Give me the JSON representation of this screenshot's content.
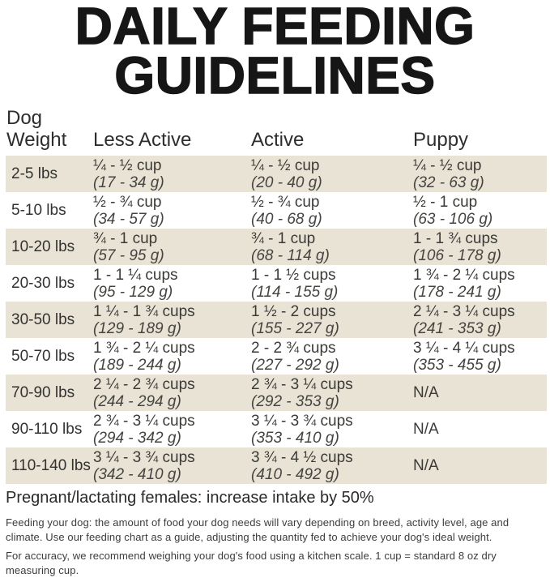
{
  "title": "DAILY FEEDING\nGUIDELINES",
  "colors": {
    "row_stripe": "#e8e3d4"
  },
  "table": {
    "headers": [
      "Dog\nWeight",
      "Less Active",
      "Active",
      "Puppy"
    ],
    "rows": [
      {
        "weight": "2-5 lbs",
        "less_active": {
          "cups": "¼ - ½ cup",
          "grams": "(17 - 34 g)"
        },
        "active": {
          "cups": "¼ - ½ cup",
          "grams": "(20 - 40 g)"
        },
        "puppy": {
          "cups": "¼ - ½ cup",
          "grams": "(32 - 63 g)"
        }
      },
      {
        "weight": "5-10 lbs",
        "less_active": {
          "cups": "½ - ¾ cup",
          "grams": "(34 - 57 g)"
        },
        "active": {
          "cups": "½ - ¾ cup",
          "grams": "(40 - 68 g)"
        },
        "puppy": {
          "cups": "½ - 1 cup",
          "grams": "(63 - 106 g)"
        }
      },
      {
        "weight": "10-20 lbs",
        "less_active": {
          "cups": "¾ - 1 cup",
          "grams": "(57 - 95 g)"
        },
        "active": {
          "cups": "¾ - 1 cup",
          "grams": "(68 - 114 g)"
        },
        "puppy": {
          "cups": "1 - 1 ¾ cups",
          "grams": "(106 - 178 g)"
        }
      },
      {
        "weight": "20-30 lbs",
        "less_active": {
          "cups": "1 - 1 ¼ cups",
          "grams": "(95 - 129 g)"
        },
        "active": {
          "cups": "1 - 1 ½ cups",
          "grams": "(114 - 155 g)"
        },
        "puppy": {
          "cups": "1 ¾ - 2 ¼ cups",
          "grams": "(178 - 241 g)"
        }
      },
      {
        "weight": "30-50 lbs",
        "less_active": {
          "cups": "1 ¼ - 1 ¾ cups",
          "grams": "(129 - 189 g)"
        },
        "active": {
          "cups": "1 ½ - 2 cups",
          "grams": "(155 - 227 g)"
        },
        "puppy": {
          "cups": "2 ¼ - 3 ¼ cups",
          "grams": "(241 - 353 g)"
        }
      },
      {
        "weight": "50-70 lbs",
        "less_active": {
          "cups": "1 ¾ - 2 ¼ cups",
          "grams": "(189 - 244 g)"
        },
        "active": {
          "cups": "2 - 2 ¾ cups",
          "grams": "(227 - 292 g)"
        },
        "puppy": {
          "cups": "3 ¼ - 4 ¼ cups",
          "grams": "(353 - 455 g)"
        }
      },
      {
        "weight": "70-90 lbs",
        "less_active": {
          "cups": "2 ¼ - 2 ¾ cups",
          "grams": "(244 - 294 g)"
        },
        "active": {
          "cups": "2 ¾ - 3 ¼ cups",
          "grams": "(292 - 353 g)"
        },
        "puppy": {
          "cups": "N/A",
          "grams": ""
        }
      },
      {
        "weight": "90-110 lbs",
        "less_active": {
          "cups": "2 ¾ - 3 ¼ cups",
          "grams": "(294 - 342 g)"
        },
        "active": {
          "cups": "3 ¼ - 3 ¾ cups",
          "grams": "(353 - 410 g)"
        },
        "puppy": {
          "cups": "N/A",
          "grams": ""
        }
      },
      {
        "weight": "110-140 lbs",
        "less_active": {
          "cups": "3 ¼ - 3 ¾ cups",
          "grams": "(342 - 410 g)"
        },
        "active": {
          "cups": "3 ¾ - 4 ½ cups",
          "grams": "(410 - 492 g)"
        },
        "puppy": {
          "cups": "N/A",
          "grams": ""
        }
      }
    ]
  },
  "notes": {
    "pregnant": "Pregnant/lactating females: increase intake by 50%",
    "feeding": "Feeding your dog: the amount of food your dog needs will vary depending on breed, activity level, age and climate. Use our feeding chart as a guide, adjusting the quantity fed to achieve your dog's ideal weight.",
    "accuracy": "For accuracy, we recommend weighing your dog's food using a kitchen scale. 1 cup = standard 8 oz dry measuring cup."
  }
}
